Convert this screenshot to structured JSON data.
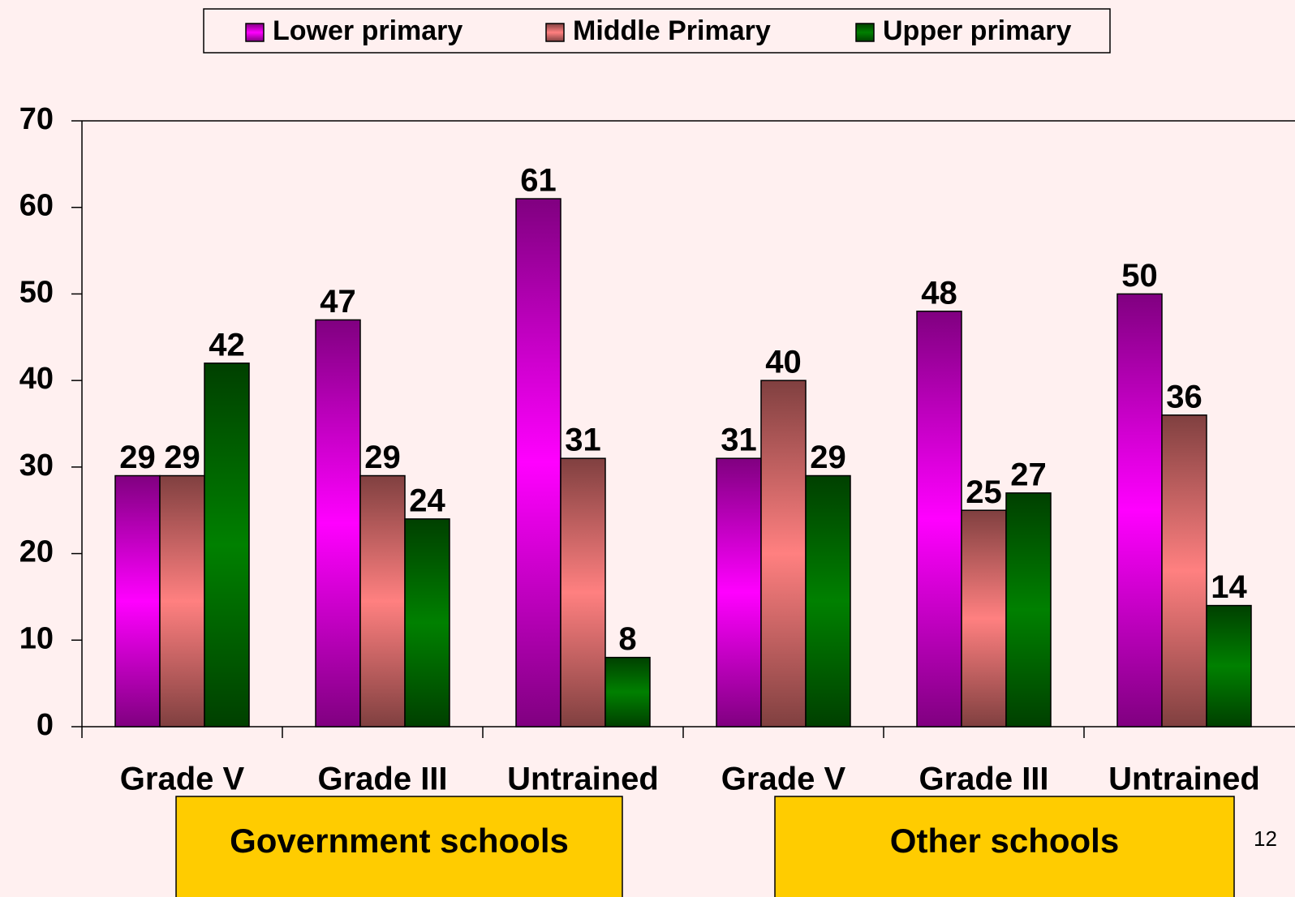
{
  "chart_data": {
    "type": "bar",
    "categories": [
      "Grade V",
      "Grade III",
      "Untrained",
      "Grade V",
      "Grade III",
      "Untrained"
    ],
    "series": [
      {
        "name": "Lower primary",
        "color": "#FF00FF",
        "values": [
          29,
          47,
          61,
          31,
          48,
          50
        ]
      },
      {
        "name": "Middle Primary",
        "color": "#FF8080",
        "values": [
          29,
          29,
          31,
          40,
          25,
          36
        ]
      },
      {
        "name": "Upper primary",
        "color": "#008000",
        "values": [
          42,
          24,
          8,
          29,
          27,
          14
        ]
      }
    ],
    "ylim": [
      0,
      70
    ],
    "yticks": [
      0,
      10,
      20,
      30,
      40,
      50,
      60,
      70
    ],
    "legend": "top",
    "grid": false,
    "annotations": [
      "Government schools",
      "Other schools"
    ],
    "page_number": "12"
  }
}
